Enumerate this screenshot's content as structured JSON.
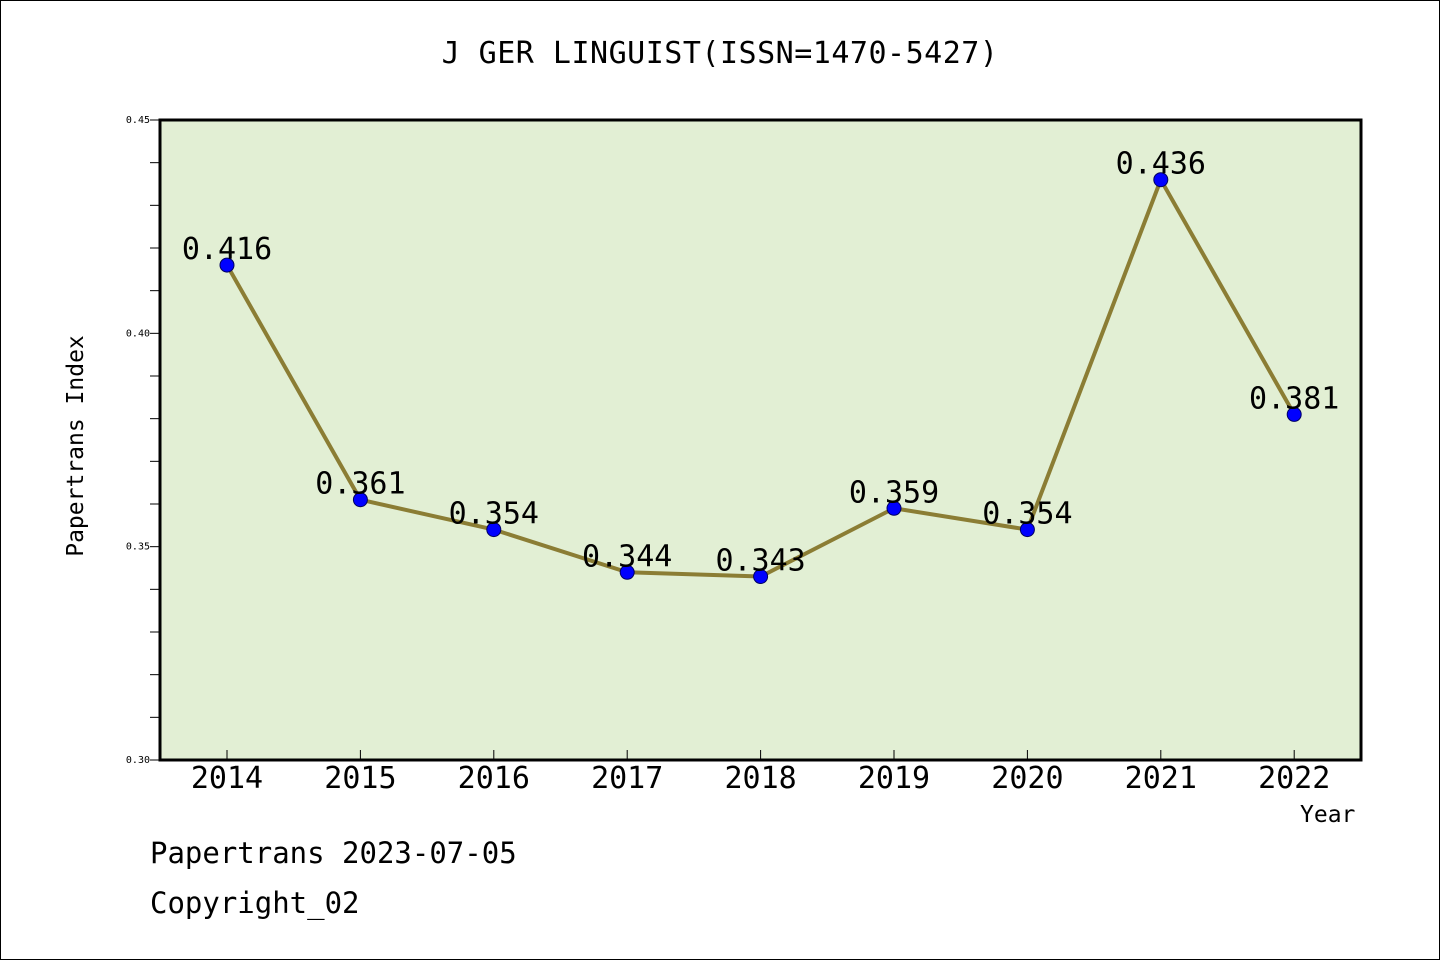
{
  "chart_data": {
    "type": "line",
    "title": "J GER LINGUIST(ISSN=1470-5427)",
    "xlabel": "Year",
    "ylabel": "Papertrans Index",
    "categories": [
      "2014",
      "2015",
      "2016",
      "2017",
      "2018",
      "2019",
      "2020",
      "2021",
      "2022"
    ],
    "values": [
      0.416,
      0.361,
      0.354,
      0.344,
      0.343,
      0.359,
      0.354,
      0.436,
      0.381
    ],
    "data_labels": [
      "0.416",
      "0.361",
      "0.354",
      "0.344",
      "0.343",
      "0.359",
      "0.354",
      "0.436",
      "0.381"
    ],
    "ylim": [
      0.3,
      0.45
    ],
    "yticks": [
      "0.30",
      "0.35",
      "0.40",
      "0.45"
    ],
    "grid": false,
    "colors": {
      "plot_background": "#e2efd4",
      "line": "#8b7d34",
      "marker": "#0000ff"
    }
  },
  "footer": {
    "date": "Papertrans 2023-07-05",
    "copyright": "Copyright_02"
  }
}
